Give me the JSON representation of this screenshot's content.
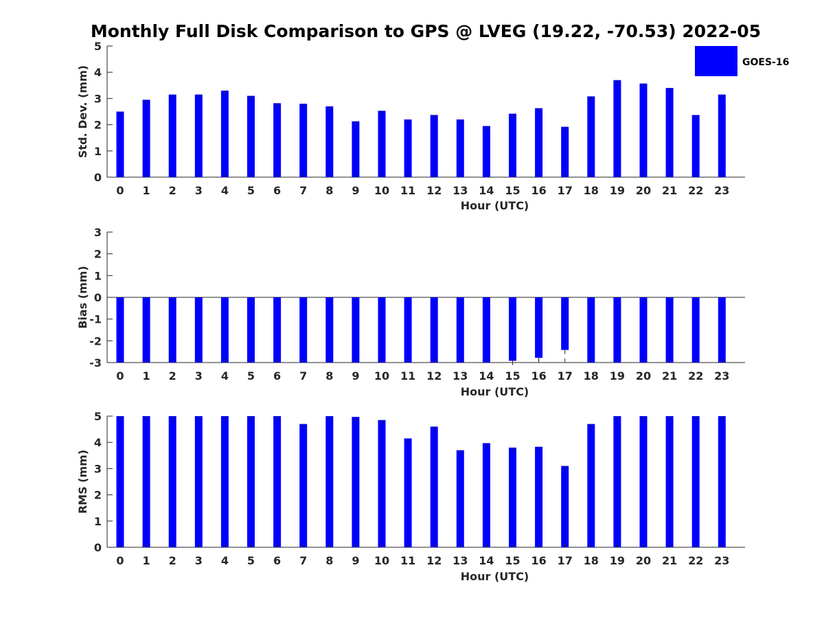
{
  "figure_title": "Monthly Full Disk Comparison to GPS @ LVEG (19.22, -70.53) 2022-05",
  "legend_label": "GOES-16",
  "series_color": "#0000ff",
  "chart_data": [
    {
      "type": "bar",
      "id": "stddev",
      "title": "Monthly Full Disk Comparison to GPS @ LVEG (19.22, -70.53) 2022-05",
      "xlabel": "Hour (UTC)",
      "ylabel": "Std. Dev. (mm)",
      "ylim": [
        0,
        5
      ],
      "yticks": [
        "0",
        "1",
        "2",
        "3",
        "4",
        "5"
      ],
      "categories": [
        "0",
        "1",
        "2",
        "3",
        "4",
        "5",
        "6",
        "7",
        "8",
        "9",
        "10",
        "11",
        "12",
        "13",
        "14",
        "15",
        "16",
        "17",
        "18",
        "19",
        "20",
        "21",
        "22",
        "23"
      ],
      "series": [
        {
          "name": "GOES-16",
          "values": [
            2.5,
            2.95,
            3.15,
            3.15,
            3.3,
            3.1,
            2.82,
            2.8,
            2.7,
            2.13,
            2.53,
            2.2,
            2.37,
            2.2,
            1.95,
            2.42,
            2.63,
            1.92,
            3.08,
            3.7,
            3.57,
            3.4,
            2.37,
            3.15
          ]
        }
      ]
    },
    {
      "type": "bar",
      "id": "bias",
      "title": "",
      "xlabel": "Hour (UTC)",
      "ylabel": "Bias (mm)",
      "ylim": [
        -3,
        3
      ],
      "yticks": [
        "-3",
        "-2",
        "-1",
        "0",
        "1",
        "2",
        "3"
      ],
      "categories": [
        "0",
        "1",
        "2",
        "3",
        "4",
        "5",
        "6",
        "7",
        "8",
        "9",
        "10",
        "11",
        "12",
        "13",
        "14",
        "15",
        "16",
        "17",
        "18",
        "19",
        "20",
        "21",
        "22",
        "23"
      ],
      "series": [
        {
          "name": "GOES-16",
          "values": [
            -3.0,
            -3.0,
            -3.0,
            -3.0,
            -3.0,
            -3.0,
            -3.0,
            -3.0,
            -3.0,
            -3.0,
            -3.0,
            -3.0,
            -3.0,
            -3.0,
            -3.0,
            -2.92,
            -2.78,
            -2.42,
            -3.0,
            -3.0,
            -3.0,
            -3.0,
            -3.0,
            -3.0
          ]
        }
      ]
    },
    {
      "type": "bar",
      "id": "rms",
      "title": "",
      "xlabel": "Hour (UTC)",
      "ylabel": "RMS (mm)",
      "ylim": [
        0,
        5
      ],
      "yticks": [
        "0",
        "1",
        "2",
        "3",
        "4",
        "5"
      ],
      "categories": [
        "0",
        "1",
        "2",
        "3",
        "4",
        "5",
        "6",
        "7",
        "8",
        "9",
        "10",
        "11",
        "12",
        "13",
        "14",
        "15",
        "16",
        "17",
        "18",
        "19",
        "20",
        "21",
        "22",
        "23"
      ],
      "series": [
        {
          "name": "GOES-16",
          "values": [
            5.0,
            5.0,
            5.0,
            5.0,
            5.0,
            5.0,
            5.0,
            4.7,
            5.0,
            4.97,
            4.85,
            4.15,
            4.6,
            3.7,
            3.97,
            3.8,
            3.83,
            3.1,
            4.7,
            5.0,
            5.0,
            5.0,
            5.0,
            5.0
          ]
        }
      ]
    }
  ]
}
